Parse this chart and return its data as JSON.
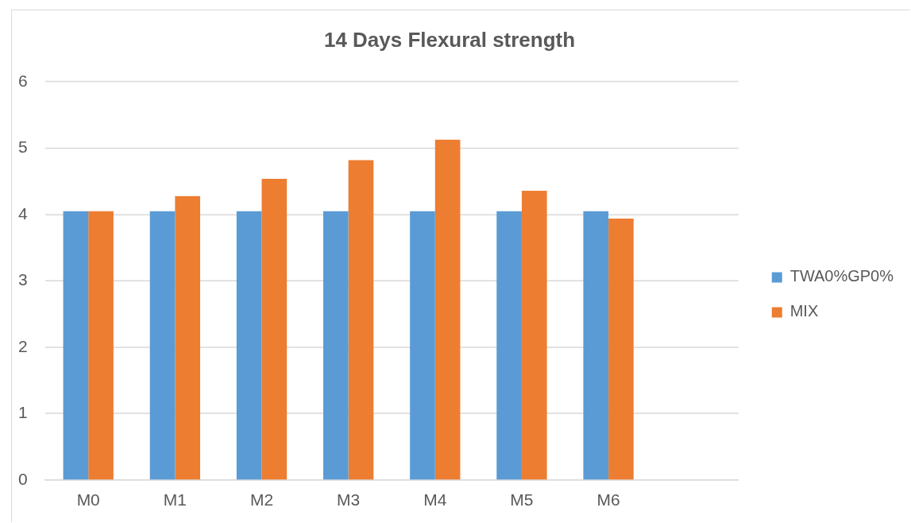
{
  "chart_data": {
    "type": "bar",
    "title": "14 Days Flexural strength",
    "categories": [
      "M0",
      "M1",
      "M2",
      "M3",
      "M4",
      "M5",
      "M6",
      null
    ],
    "series": [
      {
        "name": "TWA0%GP0%",
        "color": "#5b9bd5",
        "values": [
          4.05,
          4.05,
          4.05,
          4.05,
          4.05,
          4.05,
          4.05,
          null
        ]
      },
      {
        "name": "MIX",
        "color": "#ed7d31",
        "values": [
          4.05,
          4.28,
          4.54,
          4.82,
          5.13,
          4.36,
          3.94,
          null
        ]
      }
    ],
    "ylim": [
      0,
      6
    ],
    "yticks": [
      0,
      1,
      2,
      3,
      4,
      5,
      6
    ],
    "grid": "y",
    "legend": "right"
  }
}
